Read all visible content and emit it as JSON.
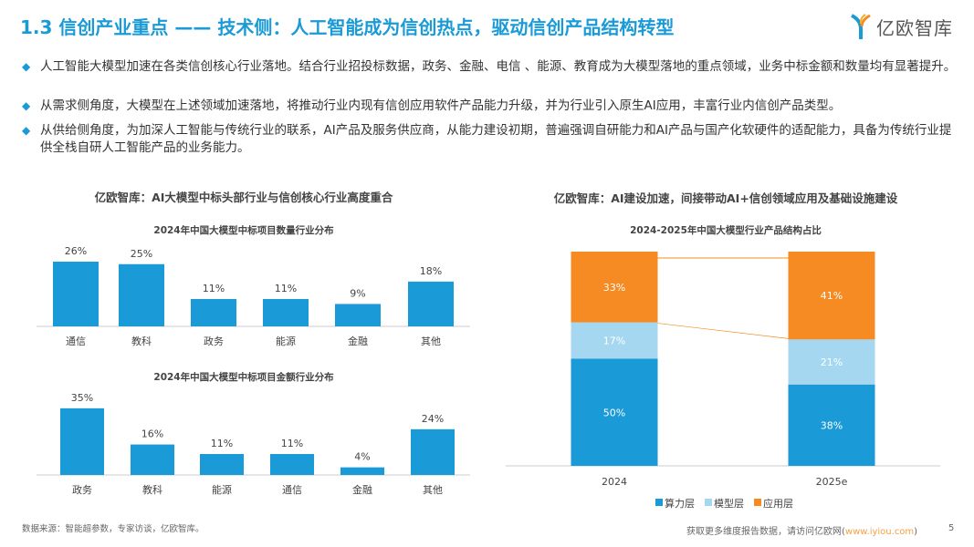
{
  "header": {
    "title": "1.3 信创产业重点 —— 技术侧：人工智能成为信创热点，驱动信创产品结构转型",
    "logo_text": "亿欧智库"
  },
  "bullets": [
    "人工智能大模型加速在各类信创核心行业落地。结合行业招投标数据，政务、金融、电信 、能源、教育成为大模型落地的重点领域，业务中标金额和数量均有显著提升。",
    "从需求侧角度，大模型在上述领域加速落地，将推动行业内现有信创应用软件产品能力升级，并为行业引入原生AI应用，丰富行业内信创产品类型。",
    "从供给侧角度，为加深人工智能与传统行业的联系，AI产品及服务供应商，从能力建设初期，普遍强调自研能力和AI产品与国产化软硬件的适配能力，具备为传统行业提供全栈自研人工智能产品的业务能力。"
  ],
  "left_panel_title": "亿欧智库：AI大模型中标头部行业与信创核心行业高度重合",
  "right_panel_title": "亿欧智库：AI建设加速，间接带动AI+信创领域应用及基础设施建设",
  "chart_data": [
    {
      "type": "bar",
      "title": "2024年中国大模型中标项目数量行业分布",
      "categories": [
        "通信",
        "教科",
        "政务",
        "能源",
        "金融",
        "其他"
      ],
      "values": [
        26,
        25,
        11,
        11,
        9,
        18
      ],
      "labels": [
        "26%",
        "25%",
        "11%",
        "11%",
        "9%",
        "18%"
      ],
      "color": "#1a9ad6",
      "unit": "%"
    },
    {
      "type": "bar",
      "title": "2024年中国大模型中标项目金额行业分布",
      "categories": [
        "政务",
        "教科",
        "能源",
        "通信",
        "金融",
        "其他"
      ],
      "values": [
        35,
        16,
        11,
        11,
        4,
        24
      ],
      "labels": [
        "35%",
        "16%",
        "11%",
        "11%",
        "4%",
        "24%"
      ],
      "color": "#1a9ad6",
      "unit": "%"
    },
    {
      "type": "bar",
      "stacked": true,
      "title": "2024-2025年中国大模型行业产品结构占比",
      "categories": [
        "2024",
        "2025e"
      ],
      "series": [
        {
          "name": "算力层",
          "values": [
            50,
            38
          ],
          "labels": [
            "50%",
            "38%"
          ],
          "color": "#1a9ad6"
        },
        {
          "name": "模型层",
          "values": [
            17,
            21
          ],
          "labels": [
            "17%",
            "21%"
          ],
          "color": "#a5d8f0"
        },
        {
          "name": "应用层",
          "values": [
            33,
            41
          ],
          "labels": [
            "33%",
            "41%"
          ],
          "color": "#f58b22"
        }
      ],
      "legend": "bottom",
      "ylim": [
        0,
        100
      ]
    }
  ],
  "footer": {
    "source": "数据来源：智能超参数，专家访谈，亿欧智库。",
    "more_prefix": "获取更多维度报告数据，请访问亿欧网(",
    "more_link": "www.iyiou.com",
    "more_suffix": ")",
    "page": "5"
  }
}
